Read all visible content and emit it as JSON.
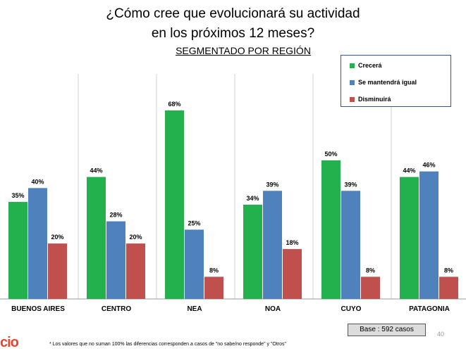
{
  "title_line1": "¿Cómo cree que evolucionará su actividad",
  "title_line2": "en los próximos 12 meses?",
  "subtitle": "SEGMENTADO POR REGIÓN",
  "base_label": "Base : 592 casos",
  "page_number": "40",
  "logo_text": "cio",
  "footnote": "* Los valores que no suman 100% las diferencias corresponden a casos de \"no sabe/no responde\" y \"Otros\"",
  "colors": {
    "crecera": "#22b14c",
    "igual": "#4f81bd",
    "disminuira": "#c0504d"
  },
  "chart_data": {
    "type": "bar",
    "categories": [
      "BUENOS AIRES",
      "CENTRO",
      "NEA",
      "NOA",
      "CUYO",
      "PATAGONIA"
    ],
    "series": [
      {
        "name": "Crecerá",
        "values": [
          35,
          44,
          68,
          34,
          50,
          44
        ]
      },
      {
        "name": "Se mantendrá igual",
        "values": [
          40,
          28,
          25,
          39,
          39,
          46
        ]
      },
      {
        "name": "Disminuirá",
        "values": [
          20,
          20,
          8,
          18,
          8,
          8
        ]
      }
    ],
    "value_suffix": "%",
    "ylim": [
      0,
      70
    ],
    "grid": "vertical separators",
    "legend": "top-right"
  }
}
